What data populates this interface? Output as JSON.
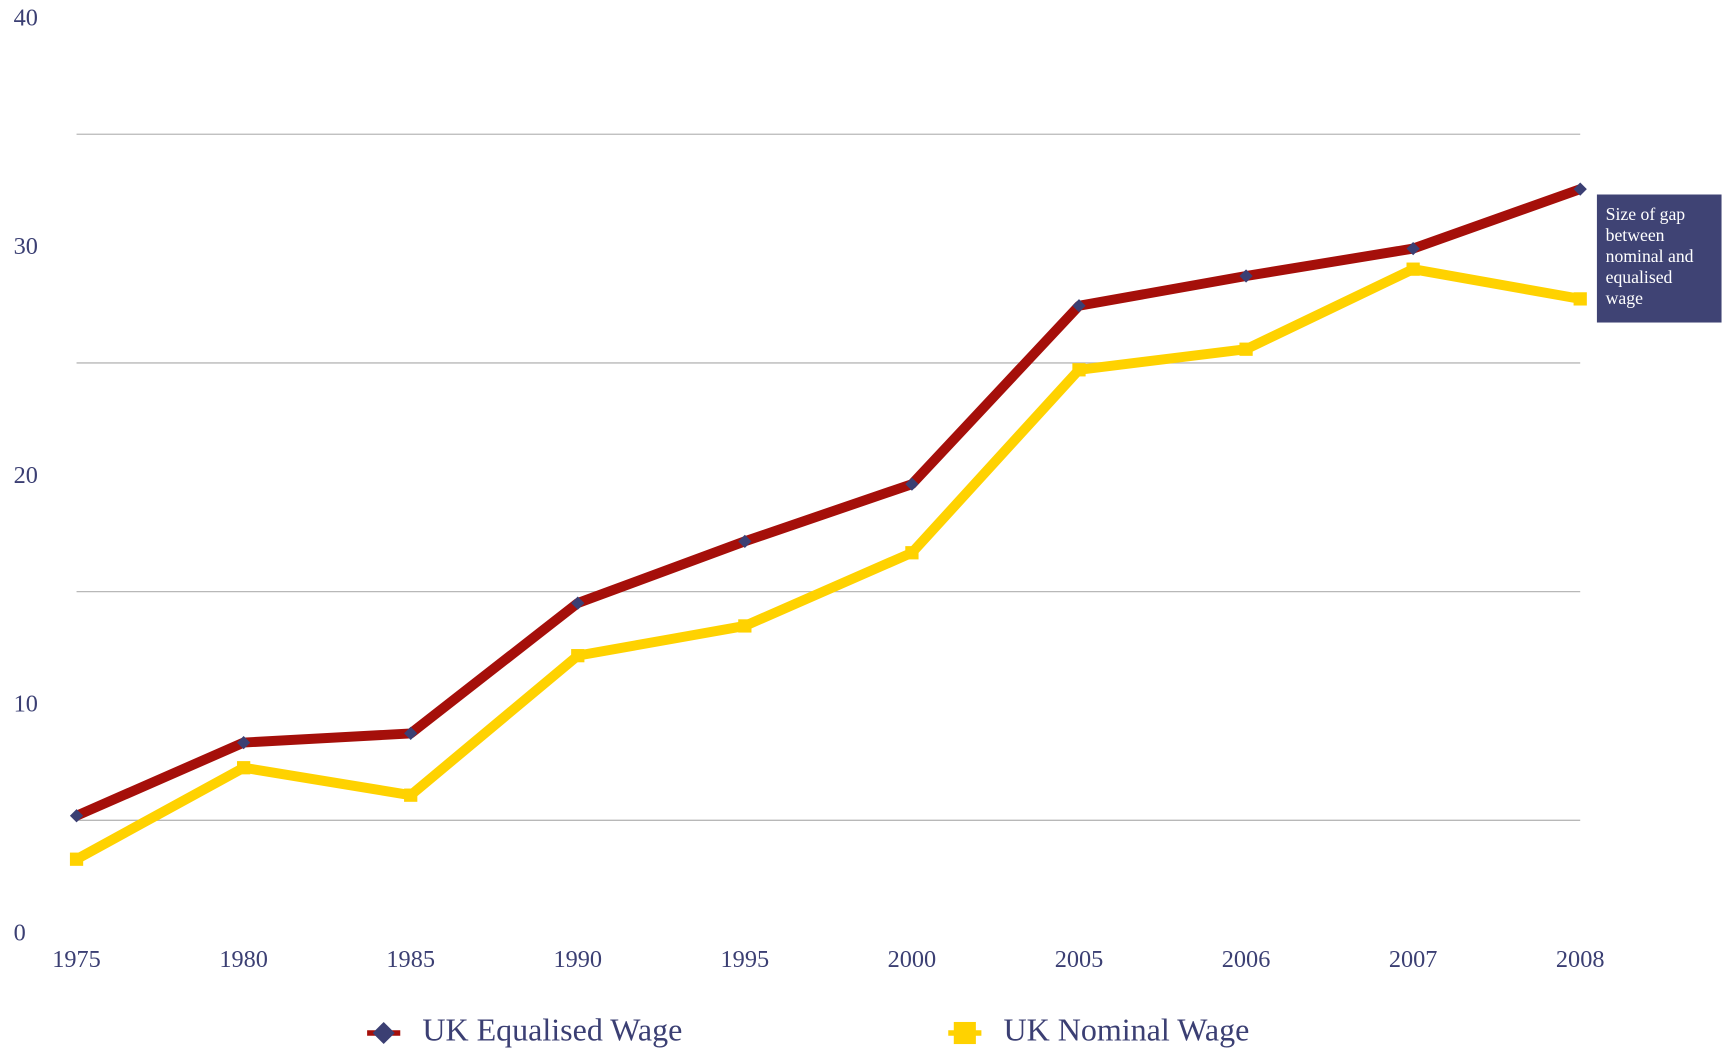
{
  "chart_data": {
    "type": "line",
    "categories": [
      "1975",
      "1980",
      "1985",
      "1990",
      "1995",
      "2000",
      "2005",
      "2006",
      "2007",
      "2008"
    ],
    "series": [
      {
        "name": "UK Equalised Wage",
        "color": "#a50f0a",
        "marker_color": "#3b3f73",
        "marker": "diamond",
        "values": [
          5.2,
          8.4,
          8.8,
          14.5,
          17.2,
          19.7,
          27.5,
          28.8,
          30,
          32.6
        ]
      },
      {
        "name": "UK Nominal Wage",
        "color": "#ffd200",
        "marker_color": "#ffd200",
        "marker": "square",
        "values": [
          3.3,
          7.3,
          6.1,
          12.2,
          13.5,
          16.7,
          24.7,
          25.6,
          29.1,
          27.8
        ]
      }
    ],
    "ylim": [
      0,
      40
    ],
    "yticks": [
      0,
      10,
      20,
      30,
      40
    ],
    "grid": true,
    "grid_values": [
      5,
      15,
      25,
      35
    ],
    "legend": "bottom",
    "annotation": "Size of gap between nominal and equalised wage"
  }
}
